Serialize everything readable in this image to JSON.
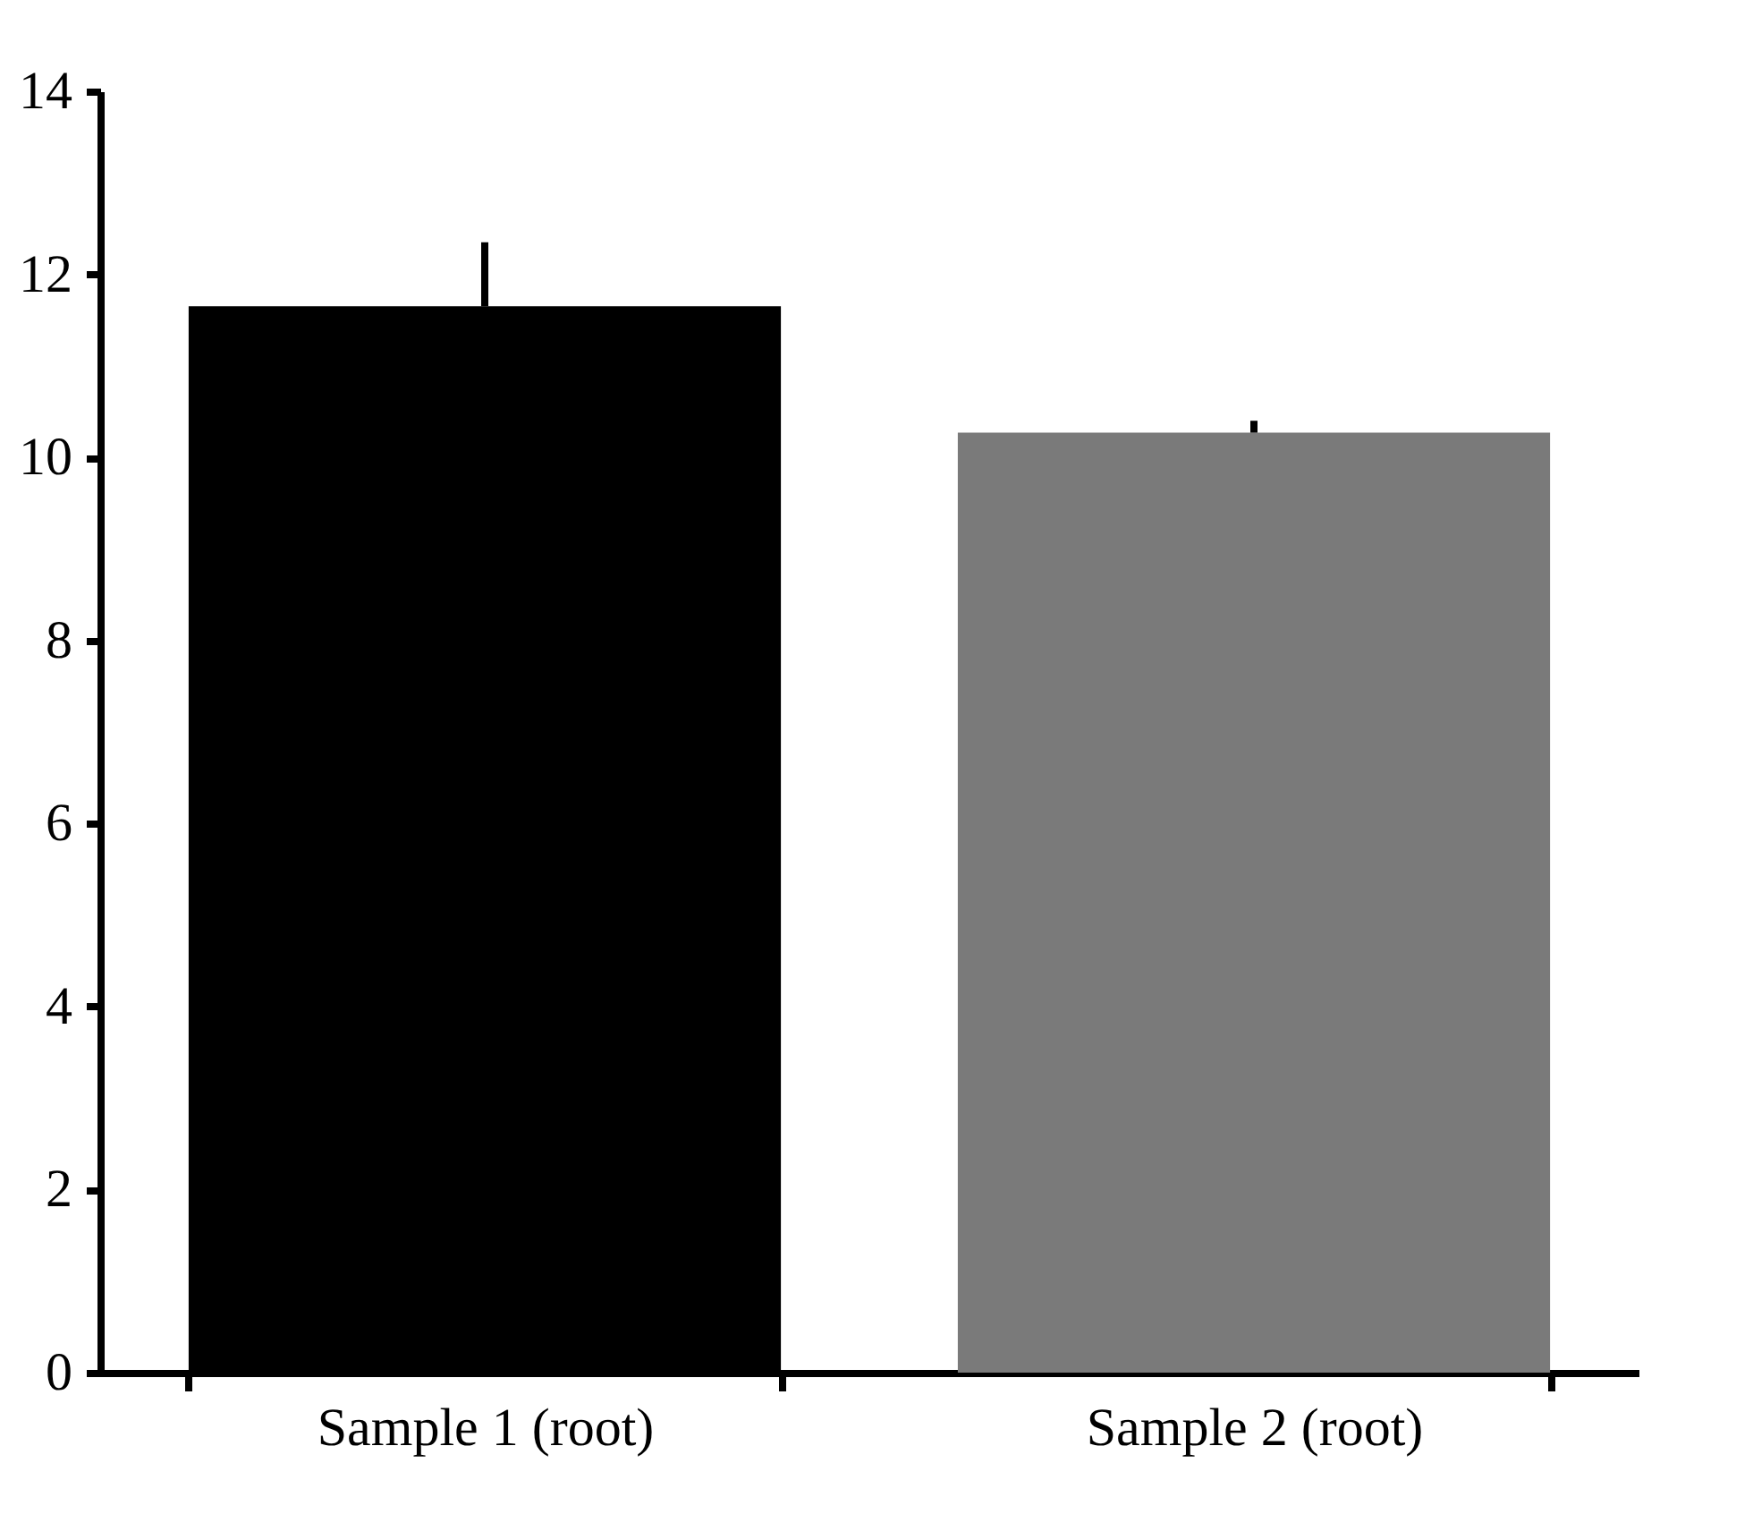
{
  "chart_data": {
    "type": "bar",
    "categories": [
      "Sample 1 (root)",
      "Sample 2 (root)"
    ],
    "values": [
      11.65,
      10.27
    ],
    "colors": [
      "#000000",
      "#7a7a7a"
    ],
    "errors": [
      [
        11.65,
        12.35
      ],
      [
        10.27,
        10.4
      ]
    ],
    "ylim": [
      0,
      14
    ],
    "yticks": [
      0,
      2,
      4,
      6,
      8,
      10,
      12,
      14
    ],
    "grid": false
  }
}
